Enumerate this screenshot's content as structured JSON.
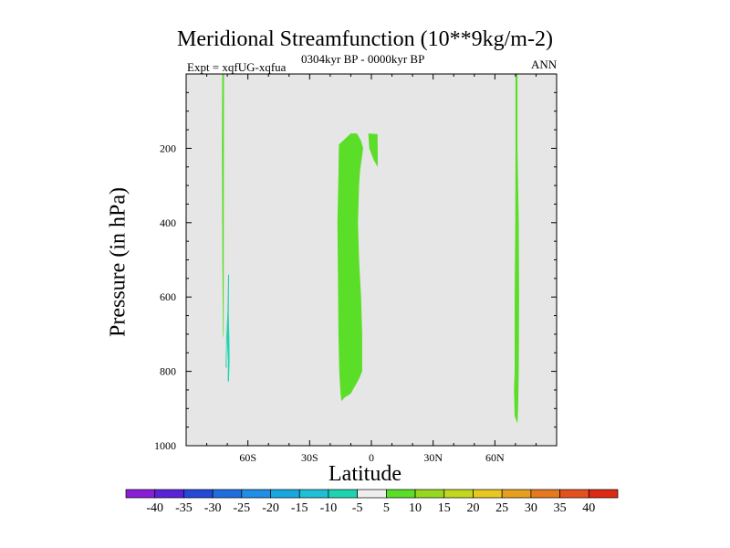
{
  "chart_data": {
    "type": "heatmap",
    "title": "Meridional Streamfunction (10**9kg/m-2)",
    "subtitle": "0304kyr BP - 0000kyr BP",
    "experiment": "Expt = xqfUG-xqfua",
    "season": "ANN",
    "xlabel": "Latitude",
    "ylabel": "Pressure (in hPa)",
    "xlim": [
      -90,
      90
    ],
    "ylim": [
      1000,
      0
    ],
    "xticks": [
      {
        "value": -60,
        "label": "60S"
      },
      {
        "value": -30,
        "label": "30S"
      },
      {
        "value": 0,
        "label": "0"
      },
      {
        "value": 30,
        "label": "30N"
      },
      {
        "value": 60,
        "label": "60N"
      }
    ],
    "yticks": [
      {
        "value": 200,
        "label": "200"
      },
      {
        "value": 400,
        "label": "400"
      },
      {
        "value": 600,
        "label": "600"
      },
      {
        "value": 800,
        "label": "800"
      },
      {
        "value": 1000,
        "label": "1000"
      }
    ],
    "background_color": "#e6e6e6",
    "colorbar": {
      "labels": [
        "-40",
        "-35",
        "-30",
        "-25",
        "-20",
        "-15",
        "-10",
        "-5",
        "5",
        "10",
        "15",
        "20",
        "25",
        "30",
        "35",
        "40"
      ],
      "colors": [
        "#8a1ed8",
        "#5a22d8",
        "#2448d8",
        "#1e6ee0",
        "#1e8ee6",
        "#18a8e0",
        "#1ec0d8",
        "#1ed4b0",
        "#eeeeee",
        "#5ade28",
        "#96d81e",
        "#c2d81e",
        "#e6c81e",
        "#e6a01e",
        "#e6781e",
        "#e6501e",
        "#dc2a14"
      ]
    },
    "regions": [
      {
        "name": "sh-high-lat-positive-strip",
        "color": "#5ade28",
        "polygon": [
          [
            -72.5,
            0
          ],
          [
            -71.6,
            0
          ],
          [
            -71.7,
            300
          ],
          [
            -71.8,
            700
          ],
          [
            -72.1,
            710
          ],
          [
            -72.4,
            500
          ],
          [
            -72.6,
            200
          ]
        ]
      },
      {
        "name": "sh-high-lat-negative-strip",
        "color": "#1ed4b0",
        "polygon": [
          [
            -69.6,
            540
          ],
          [
            -69.1,
            540
          ],
          [
            -69.3,
            640
          ],
          [
            -69.0,
            720
          ],
          [
            -68.9,
            770
          ],
          [
            -69.2,
            830
          ],
          [
            -69.8,
            825
          ],
          [
            -69.7,
            770
          ],
          [
            -70.3,
            710
          ],
          [
            -70.3,
            790
          ],
          [
            -70.8,
            790
          ],
          [
            -70.6,
            720
          ],
          [
            -69.9,
            640
          ]
        ]
      },
      {
        "name": "tropical-positive-column",
        "color": "#5ade28",
        "polygon": [
          [
            -16,
            270
          ],
          [
            -15.8,
            190
          ],
          [
            -10,
            160
          ],
          [
            -7,
            160
          ],
          [
            -5,
            180
          ],
          [
            -4,
            200
          ],
          [
            -5.5,
            260
          ],
          [
            -6,
            300
          ],
          [
            -6.5,
            400
          ],
          [
            -6,
            500
          ],
          [
            -5,
            600
          ],
          [
            -4.5,
            700
          ],
          [
            -4.5,
            800
          ],
          [
            -6,
            820
          ],
          [
            -10,
            860
          ],
          [
            -13,
            870
          ],
          [
            -14.5,
            880
          ],
          [
            -15,
            860
          ],
          [
            -15.6,
            800
          ],
          [
            -16,
            700
          ],
          [
            -16.3,
            500
          ],
          [
            -16.5,
            400
          ]
        ]
      },
      {
        "name": "tropical-positive-tail",
        "color": "#5ade28",
        "polygon": [
          [
            -1.5,
            160
          ],
          [
            3,
            162
          ],
          [
            3,
            190
          ],
          [
            3.1,
            230
          ],
          [
            3,
            250
          ],
          [
            1,
            230
          ],
          [
            -1,
            200
          ]
        ]
      },
      {
        "name": "nh-high-lat-positive-strip",
        "color": "#5ade28",
        "polygon": [
          [
            70,
            0
          ],
          [
            71,
            0
          ],
          [
            71,
            200
          ],
          [
            71.6,
            400
          ],
          [
            71.8,
            600
          ],
          [
            71.6,
            800
          ],
          [
            71.3,
            900
          ],
          [
            71,
            940
          ],
          [
            69.6,
            920
          ],
          [
            69.3,
            850
          ],
          [
            69.6,
            800
          ],
          [
            69.6,
            600
          ],
          [
            69.9,
            400
          ],
          [
            70,
            200
          ]
        ]
      }
    ]
  }
}
